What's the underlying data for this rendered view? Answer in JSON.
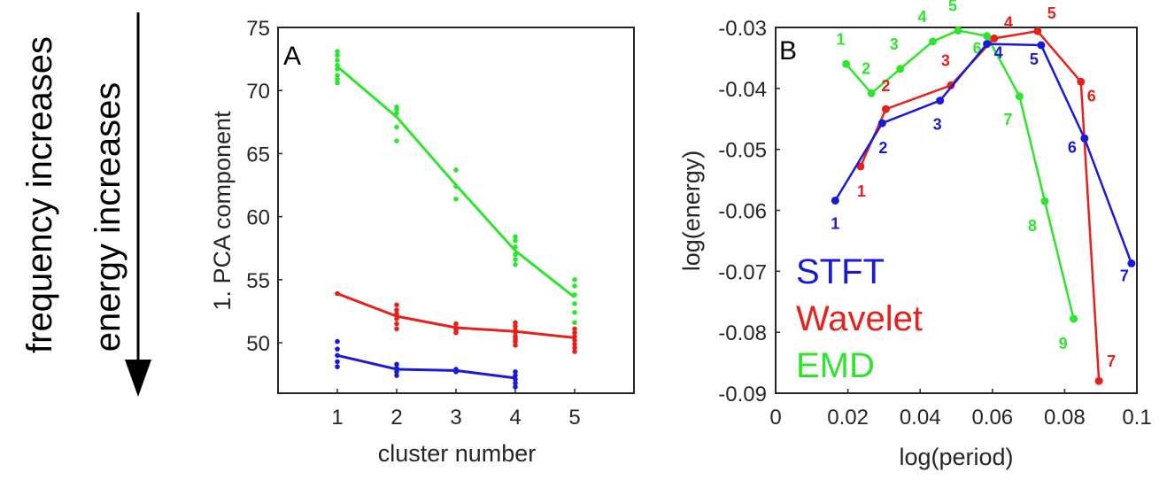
{
  "side_labels": {
    "frequency": "frequency increases",
    "energy": "energy increases"
  },
  "colors": {
    "stft": "#1a1ad6",
    "wavelet": "#e8201a",
    "emd": "#2ee52e",
    "axis": "#262626"
  },
  "chart_data": [
    {
      "panel": "A",
      "type": "scatter",
      "title": "",
      "xlabel": "cluster number",
      "ylabel": "1. PCA component",
      "xlim": [
        0,
        6
      ],
      "ylim": [
        46,
        75
      ],
      "xticks": [
        "1",
        "2",
        "3",
        "4",
        "5"
      ],
      "xtick_values": [
        1,
        2,
        3,
        4,
        5
      ],
      "yticks": [
        "50",
        "55",
        "60",
        "65",
        "70",
        "75"
      ],
      "ytick_values": [
        50,
        55,
        60,
        65,
        70,
        75
      ],
      "series": [
        {
          "name": "EMD",
          "color_key": "emd",
          "line_x": [
            1,
            2,
            3,
            4,
            5
          ],
          "line_y": [
            71.9,
            67.9,
            62.5,
            57.3,
            53.6
          ],
          "points": [
            [
              1,
              73.1
            ],
            [
              1,
              72.8
            ],
            [
              1,
              72.4
            ],
            [
              1,
              72.0
            ],
            [
              1,
              71.7
            ],
            [
              1,
              71.2
            ],
            [
              1,
              70.9
            ],
            [
              1,
              70.6
            ],
            [
              2,
              68.7
            ],
            [
              2,
              68.5
            ],
            [
              2,
              68.2
            ],
            [
              2,
              67.1
            ],
            [
              2,
              66.0
            ],
            [
              3,
              63.7
            ],
            [
              3,
              62.4
            ],
            [
              3,
              61.4
            ],
            [
              4,
              58.4
            ],
            [
              4,
              58.1
            ],
            [
              4,
              57.6
            ],
            [
              4,
              57.0
            ],
            [
              4,
              56.6
            ],
            [
              4,
              56.2
            ],
            [
              5,
              55.0
            ],
            [
              5,
              54.5
            ],
            [
              5,
              53.8
            ],
            [
              5,
              53.1
            ],
            [
              5,
              52.4
            ],
            [
              5,
              51.6
            ]
          ]
        },
        {
          "name": "Wavelet",
          "color_key": "wavelet",
          "line_x": [
            1,
            2,
            3,
            4,
            5
          ],
          "line_y": [
            53.9,
            52.1,
            51.2,
            50.9,
            50.4
          ],
          "points": [
            [
              1,
              53.9
            ],
            [
              2,
              53.0
            ],
            [
              2,
              52.6
            ],
            [
              2,
              52.3
            ],
            [
              2,
              51.9
            ],
            [
              2,
              51.5
            ],
            [
              2,
              51.1
            ],
            [
              3,
              51.5
            ],
            [
              3,
              51.2
            ],
            [
              3,
              51.0
            ],
            [
              3,
              50.8
            ],
            [
              4,
              51.6
            ],
            [
              4,
              51.3
            ],
            [
              4,
              51.0
            ],
            [
              4,
              50.8
            ],
            [
              4,
              50.5
            ],
            [
              4,
              50.3
            ],
            [
              4,
              50.1
            ],
            [
              4,
              49.8
            ],
            [
              5,
              51.1
            ],
            [
              5,
              50.8
            ],
            [
              5,
              50.5
            ],
            [
              5,
              50.2
            ],
            [
              5,
              49.9
            ],
            [
              5,
              49.6
            ],
            [
              5,
              49.3
            ]
          ]
        },
        {
          "name": "STFT",
          "color_key": "stft",
          "line_x": [
            1,
            2,
            3,
            4
          ],
          "line_y": [
            49.0,
            47.9,
            47.8,
            47.2
          ],
          "points": [
            [
              1,
              50.1
            ],
            [
              1,
              49.5
            ],
            [
              1,
              49.0
            ],
            [
              1,
              48.5
            ],
            [
              1,
              48.1
            ],
            [
              2,
              48.3
            ],
            [
              2,
              48.0
            ],
            [
              2,
              47.7
            ],
            [
              2,
              47.4
            ],
            [
              3,
              47.9
            ],
            [
              3,
              47.7
            ],
            [
              4,
              47.7
            ],
            [
              4,
              47.4
            ],
            [
              4,
              47.1
            ],
            [
              4,
              46.8
            ],
            [
              4,
              46.5
            ]
          ]
        }
      ]
    },
    {
      "panel": "B",
      "type": "line",
      "title": "",
      "xlabel": "log(period)",
      "ylabel": "log(energy)",
      "xlim": [
        0,
        0.1
      ],
      "ylim": [
        -0.09,
        -0.03
      ],
      "xticks": [
        "0",
        "0.02",
        "0.04",
        "0.06",
        "0.08",
        "0.1"
      ],
      "xtick_values": [
        0,
        0.02,
        0.04,
        0.06,
        0.08,
        0.1
      ],
      "yticks": [
        "-0.03",
        "-0.04",
        "-0.05",
        "-0.06",
        "-0.07",
        "-0.08",
        "-0.09"
      ],
      "ytick_values": [
        -0.03,
        -0.04,
        -0.05,
        -0.06,
        -0.07,
        -0.08,
        -0.09
      ],
      "legend": [
        {
          "label": "STFT",
          "color_key": "stft"
        },
        {
          "label": "Wavelet",
          "color_key": "wavelet"
        },
        {
          "label": "EMD",
          "color_key": "emd"
        }
      ],
      "legend_position": "bottom-left",
      "series": [
        {
          "name": "EMD",
          "color_key": "emd",
          "x": [
            0.0195,
            0.0265,
            0.0345,
            0.0435,
            0.0505,
            0.0585,
            0.0675,
            0.0745,
            0.0825
          ],
          "y": [
            -0.036,
            -0.0408,
            -0.0368,
            -0.0323,
            -0.0305,
            -0.0314,
            -0.0413,
            -0.0585,
            -0.0778
          ],
          "labels": [
            "1",
            "2",
            "3",
            "4",
            "5",
            "6",
            "7",
            "8",
            "9"
          ]
        },
        {
          "name": "Wavelet",
          "color_key": "wavelet",
          "x": [
            0.0235,
            0.0305,
            0.0485,
            0.0605,
            0.0725,
            0.0845,
            0.0895
          ],
          "y": [
            -0.0528,
            -0.0434,
            -0.0395,
            -0.0318,
            -0.0306,
            -0.0389,
            -0.088
          ],
          "labels": [
            "1",
            "2",
            "3",
            "4",
            "5",
            "6",
            "7"
          ]
        },
        {
          "name": "STFT",
          "color_key": "stft",
          "x": [
            0.0165,
            0.0295,
            0.0455,
            0.0585,
            0.0735,
            0.0855,
            0.0985
          ],
          "y": [
            -0.0584,
            -0.0457,
            -0.042,
            -0.0327,
            -0.0329,
            -0.0482,
            -0.0687
          ],
          "labels": [
            "1",
            "2",
            "3",
            "4",
            "5",
            "6",
            "7"
          ]
        }
      ]
    }
  ]
}
